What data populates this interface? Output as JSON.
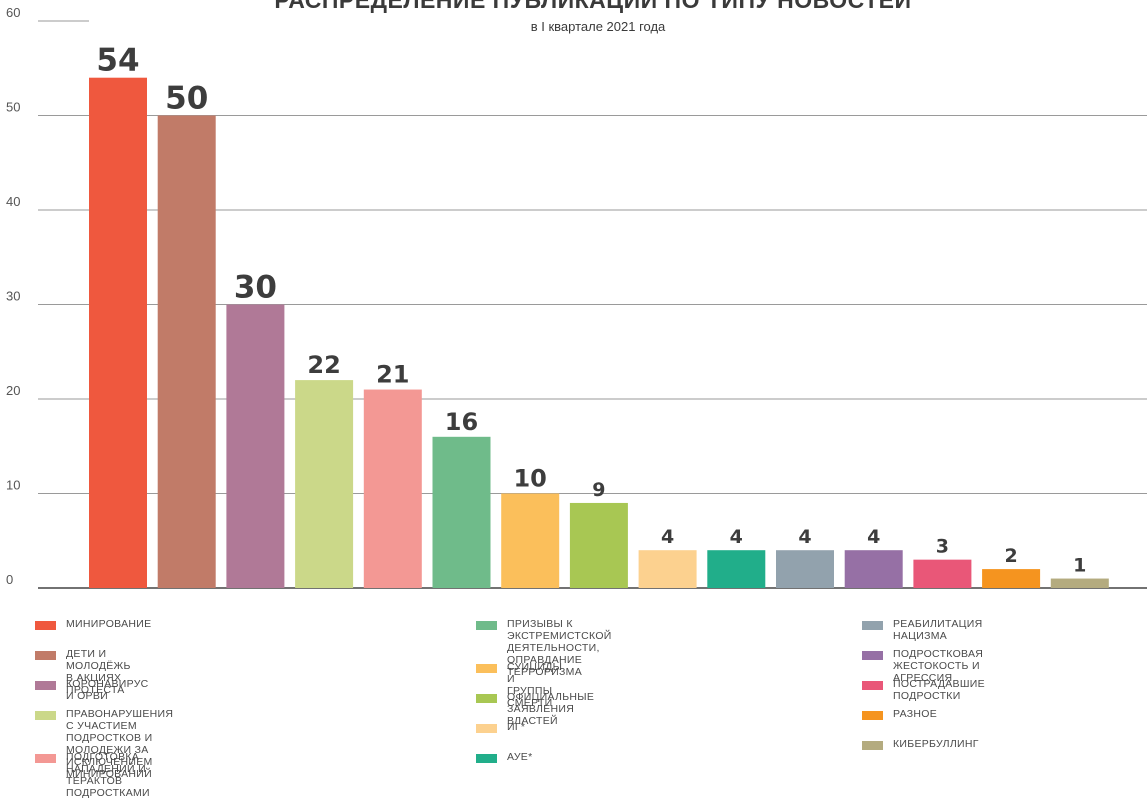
{
  "chart_data": {
    "type": "bar",
    "title": "РАСПРЕДЕЛЕНИЕ ПУБЛИКАЦИЙ ПО ТИПУ НОВОСТЕЙ",
    "subtitle": "в I квартале 2021 года",
    "xlabel": "",
    "ylabel": "",
    "ylim": [
      0,
      60
    ],
    "yticks": [
      0,
      10,
      20,
      30,
      40,
      50,
      60
    ],
    "grid": true,
    "legend_position": "bottom",
    "categories": [
      "МИНИРОВАНИЕ",
      "ДЕТИ И МОЛОДЁЖЬ В АКЦИЯХ ПРОТЕСТА",
      "КОРОНАВИРУС И ОРВИ",
      "ПРАВОНАРУШЕНИЯ С УЧАСТИЕМ ПОДРОСТКОВ И\nМОЛОДЕЖИ ЗА ИСКЛЮЧЕНИЕМ МИНИРОВАНИЙ",
      "ПОДГОТОВКА НАПАДЕНИЙ И ТЕРАКТОВ ПОДРОСТКАМИ",
      "ПРИЗЫВЫ К ЭКСТРЕМИСТСКОЙ ДЕЯТЕЛЬНОСТИ,\nОПРАВДАНИЕ ТЕРРОРИЗМА",
      "СУИЦИДЫ И ГРУППЫ СМЕРТИ",
      "ОФИЦИАЛЬНЫЕ ЗАЯВЛЕНИЯ ВЛАСТЕЙ",
      "ИГ*",
      "АУЕ*",
      "РЕАБИЛИТАЦИЯ НАЦИЗМА",
      "ПОДРОСТКОВАЯ ЖЕСТОКОСТЬ И АГРЕССИЯ",
      "ПОСТРАДАВШИЕ ПОДРОСТКИ",
      "РАЗНОЕ",
      "КИБЕРБУЛЛИНГ"
    ],
    "values": [
      54,
      50,
      30,
      22,
      21,
      16,
      10,
      9,
      4,
      4,
      4,
      4,
      3,
      2,
      1
    ],
    "colors": [
      "#ef583e",
      "#c17b68",
      "#b07997",
      "#cbd889",
      "#f39894",
      "#6fbb8a",
      "#fbbf5b",
      "#a8c753",
      "#fcd18f",
      "#21ae8a",
      "#92a2ad",
      "#9670a5",
      "#e95778",
      "#f5941f",
      "#b4ab7f"
    ]
  }
}
